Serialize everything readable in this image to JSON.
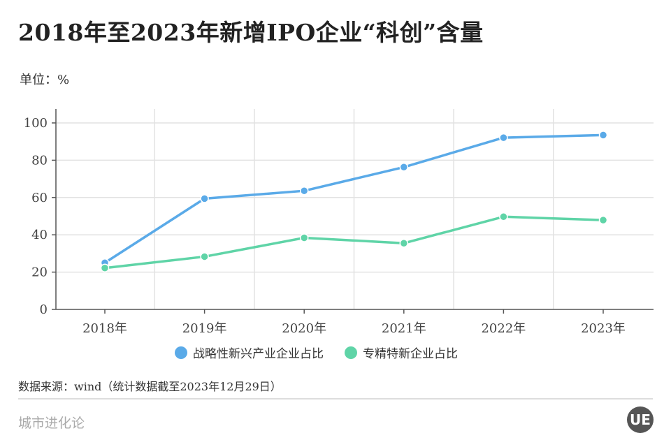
{
  "title": "2018年至2023年新增IPO企业“科创”含量",
  "unit": "单位：%",
  "source": "数据来源：wind（统计数据截至2023年12月29日）",
  "brand": "城市进化论",
  "logo_text": "UE",
  "colors": {
    "series1": "#5aaae8",
    "series2": "#5fd4a7"
  },
  "chart_data": {
    "type": "line",
    "title": "2018年至2023年新增IPO企业“科创”含量",
    "xlabel": "",
    "ylabel": "%",
    "categories": [
      "2018年",
      "2019年",
      "2020年",
      "2021年",
      "2022年",
      "2023年"
    ],
    "ylim": [
      0,
      100
    ],
    "yticks": [
      0,
      20,
      40,
      60,
      80,
      100
    ],
    "grid": true,
    "legend": "bottom",
    "series": [
      {
        "name": "战略性新兴产业企业占比",
        "values": [
          25.0,
          59.4,
          63.6,
          76.3,
          92.1,
          93.5
        ]
      },
      {
        "name": "专精特新企业占比",
        "values": [
          22.2,
          28.3,
          38.4,
          35.5,
          49.7,
          47.9
        ]
      }
    ]
  }
}
